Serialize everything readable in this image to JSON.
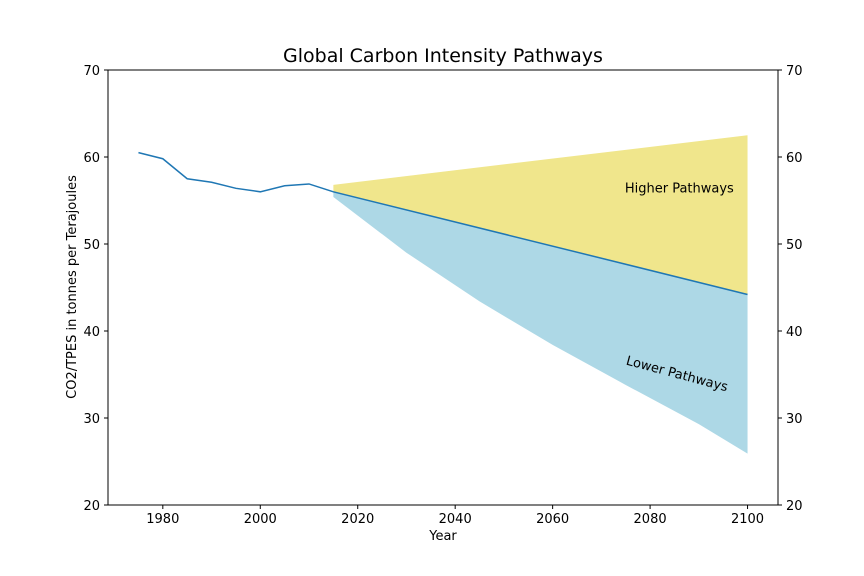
{
  "chart_data": {
    "type": "line",
    "title": "Global Carbon Intensity Pathways",
    "xlabel": "Year",
    "ylabel": "CO2/TPES in tonnes per Terajoules",
    "xlim": [
      1968.75,
      2106.25
    ],
    "ylim": [
      20,
      70
    ],
    "xticks": [
      1980,
      2000,
      2020,
      2040,
      2060,
      2080,
      2100
    ],
    "yticks": [
      20,
      30,
      40,
      50,
      60,
      70
    ],
    "secondary_y_axis": true,
    "grid": false,
    "series": [
      {
        "color": "#1f77b4",
        "x": [
          1975,
          1980,
          1985,
          1990,
          1995,
          2000,
          2005,
          2010,
          2015,
          2100
        ],
        "y": [
          60.5,
          59.8,
          57.5,
          57.1,
          56.4,
          56.0,
          56.7,
          56.9,
          56.0,
          44.2
        ]
      }
    ],
    "bands": [
      {
        "label": "Higher Pathways",
        "color": "#f0e68c",
        "x": [
          2015,
          2100
        ],
        "upper": [
          56.8,
          62.5
        ],
        "lower": [
          56.0,
          44.2
        ]
      },
      {
        "label": "Lower Pathways",
        "color": "#add8e6",
        "x": [
          2015,
          2030,
          2045,
          2060,
          2075,
          2090,
          2100
        ],
        "upper": [
          56.0,
          53.9,
          51.8,
          49.7,
          47.6,
          45.6,
          44.2
        ],
        "lower": [
          55.4,
          49.0,
          43.4,
          38.4,
          33.8,
          29.3,
          25.9
        ]
      }
    ],
    "annotations": [
      {
        "text": "Higher Pathways",
        "x": 2086,
        "y": 56.3,
        "rotation": 0
      },
      {
        "text": "Lower Pathways",
        "x": 2085.5,
        "y": 35,
        "rotation": 15
      }
    ]
  }
}
